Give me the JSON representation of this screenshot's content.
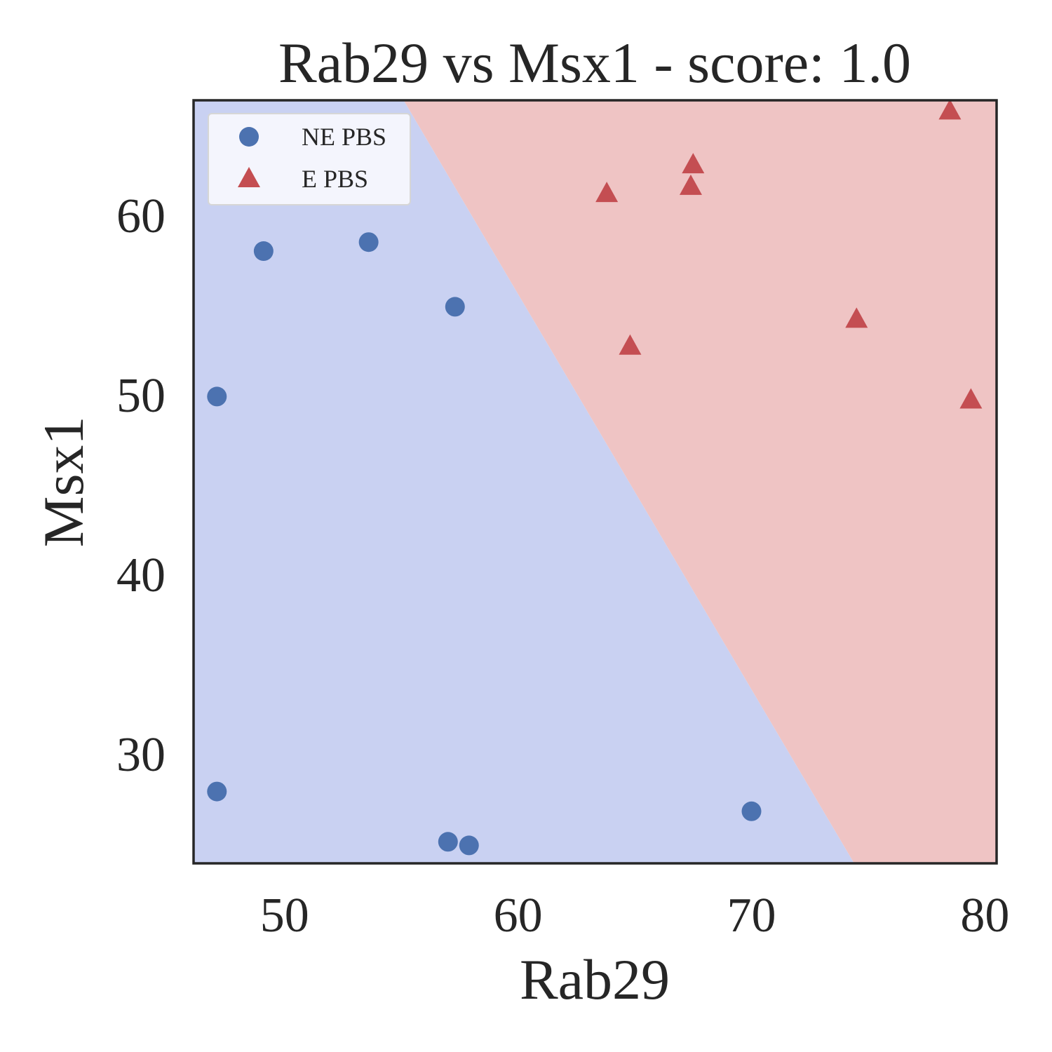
{
  "chart_data": {
    "type": "scatter",
    "title": "Rab29 vs Msx1 - score: 1.0",
    "xlabel": "Rab29",
    "ylabel": "Msx1",
    "xlim": [
      46.1,
      80.5
    ],
    "ylim": [
      23.9,
      66.4
    ],
    "xticks": [
      {
        "value": 50,
        "label": "50"
      },
      {
        "value": 60,
        "label": "60"
      },
      {
        "value": 70,
        "label": "70"
      },
      {
        "value": 80,
        "label": "80"
      }
    ],
    "yticks": [
      {
        "value": 30,
        "label": "30"
      },
      {
        "value": 40,
        "label": "40"
      },
      {
        "value": 50,
        "label": "50"
      },
      {
        "value": 60,
        "label": "60"
      }
    ],
    "grid": false,
    "legend": {
      "position": "top-left",
      "entries": [
        {
          "label": "NE PBS",
          "marker": "circle",
          "color": "#4c72b0"
        },
        {
          "label": "E PBS",
          "marker": "triangle",
          "color": "#c44e52"
        }
      ]
    },
    "decision_boundary": {
      "points": [
        [
          55.1,
          66.4
        ],
        [
          74.4,
          23.9
        ]
      ],
      "regions": [
        {
          "class": "NE PBS",
          "side": "left",
          "color": "#c9d1f2"
        },
        {
          "class": "E PBS",
          "side": "right",
          "color": "#efc4c4"
        }
      ]
    },
    "series": [
      {
        "name": "NE PBS",
        "marker": "circle",
        "color": "#4c72b0",
        "points": [
          {
            "x": 47.1,
            "y": 49.9
          },
          {
            "x": 49.1,
            "y": 58.0
          },
          {
            "x": 53.6,
            "y": 58.5
          },
          {
            "x": 57.3,
            "y": 54.9
          },
          {
            "x": 47.1,
            "y": 27.9
          },
          {
            "x": 57.0,
            "y": 25.1
          },
          {
            "x": 57.9,
            "y": 24.9
          },
          {
            "x": 70.0,
            "y": 26.8
          }
        ]
      },
      {
        "name": "E PBS",
        "marker": "triangle",
        "color": "#c44e52",
        "points": [
          {
            "x": 63.8,
            "y": 61.2
          },
          {
            "x": 64.8,
            "y": 52.7
          },
          {
            "x": 67.4,
            "y": 61.6
          },
          {
            "x": 67.5,
            "y": 62.8
          },
          {
            "x": 74.5,
            "y": 54.2
          },
          {
            "x": 78.5,
            "y": 65.8
          },
          {
            "x": 79.4,
            "y": 49.7
          }
        ]
      }
    ]
  }
}
